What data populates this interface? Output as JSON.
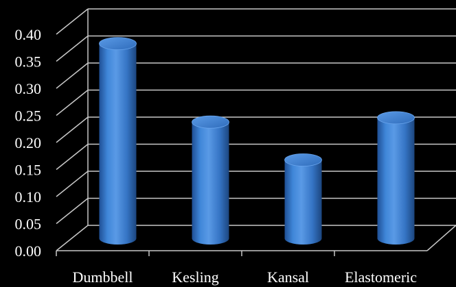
{
  "chart_data": {
    "type": "bar",
    "style": "3d-cylinder",
    "categories": [
      "Dumbbell",
      "Kesling",
      "Kansal",
      "Elastomeric"
    ],
    "values": [
      0.365,
      0.22,
      0.15,
      0.228
    ],
    "ylim": [
      0,
      0.4
    ],
    "yticks": [
      "0.00",
      "0.05",
      "0.10",
      "0.15",
      "0.20",
      "0.25",
      "0.30",
      "0.35",
      "0.40"
    ],
    "grid": true,
    "legend": "none",
    "background": "#000000",
    "bar_color": "#3a7fd0",
    "grid_color": "#c8c8c8",
    "text_color": "#ffffff"
  }
}
